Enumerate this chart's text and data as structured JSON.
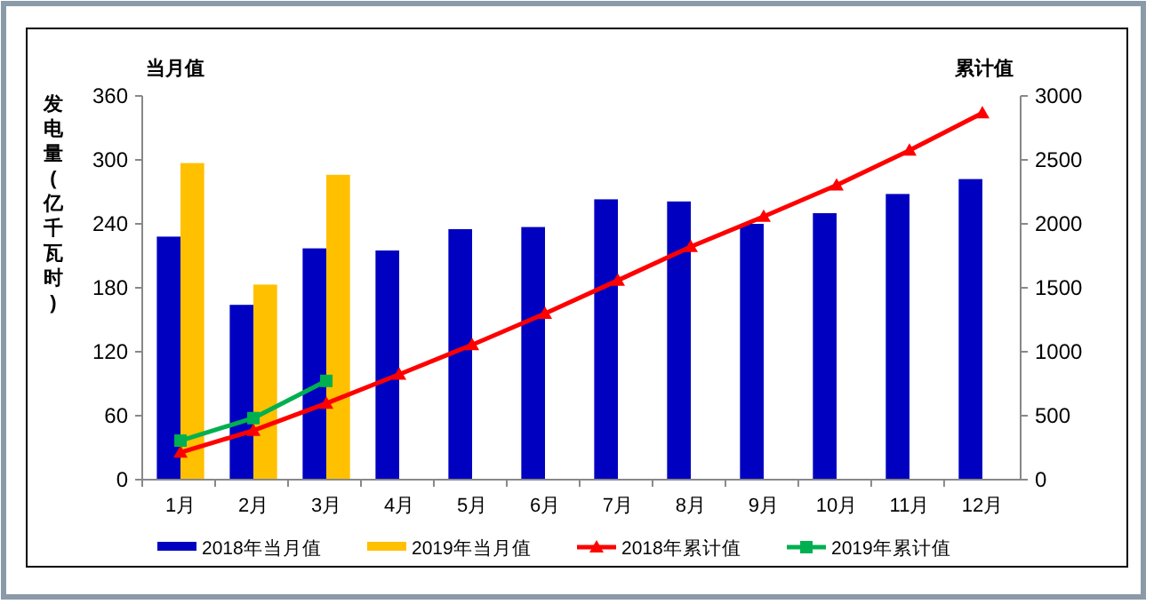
{
  "chart_data": {
    "type": "bar",
    "ylabel": "发电量(亿千瓦时)",
    "y2label": "累计值",
    "annotations": [
      "当月值"
    ],
    "categories": [
      "1月",
      "2月",
      "3月",
      "4月",
      "5月",
      "6月",
      "7月",
      "8月",
      "9月",
      "10月",
      "11月",
      "12月"
    ],
    "series": [
      {
        "name": "2018年当月值",
        "color": "#0000c0",
        "values": [
          228,
          164,
          217,
          215,
          235,
          237,
          263,
          261,
          240,
          250,
          268,
          282
        ]
      },
      {
        "name": "2019年当月值",
        "color": "#ffc000",
        "values": [
          297,
          183,
          286,
          null,
          null,
          null,
          null,
          null,
          null,
          null,
          null,
          null
        ]
      },
      {
        "name": "2018年累计值",
        "type": "line",
        "axis": "y2",
        "marker": "triangle",
        "color": "#ff0000",
        "values": [
          213,
          384,
          596,
          823,
          1054,
          1299,
          1558,
          1821,
          2057,
          2302,
          2574,
          2866
        ]
      },
      {
        "name": "2019年累计值",
        "type": "line",
        "axis": "y2",
        "marker": "square",
        "color": "#00b050",
        "values": [
          305,
          481,
          772,
          null,
          null,
          null,
          null,
          null,
          null,
          null,
          null,
          null
        ]
      }
    ],
    "ylim": [
      0,
      360
    ],
    "yticks": [
      0,
      60,
      120,
      180,
      240,
      300,
      360
    ],
    "y2lim": [
      0,
      3000
    ],
    "y2ticks": [
      0,
      500,
      1000,
      1500,
      2000,
      2500,
      3000
    ],
    "grid": false,
    "legend": "bottom"
  }
}
